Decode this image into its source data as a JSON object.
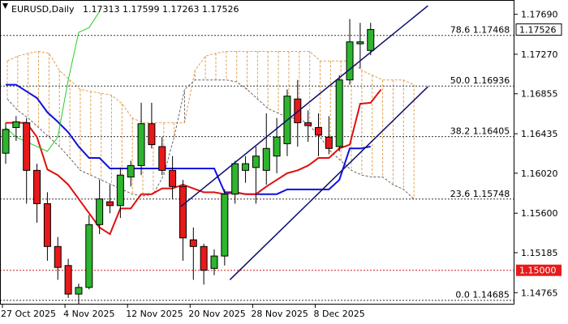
{
  "chart_data": {
    "type": "candlestick",
    "title": "EURUSD,Daily",
    "ohlc_header": "1.17313 1.17599 1.17263 1.17526",
    "ylim": [
      1.1464,
      1.1784
    ],
    "y_ticks": [
      "1.17690",
      "1.17270",
      "1.16855",
      "1.16435",
      "1.16020",
      "1.15600",
      "1.15185",
      "1.14765"
    ],
    "x_tick_labels": [
      "27 Oct 2025",
      "4 Nov 2025",
      "12 Nov 2025",
      "20 Nov 2025",
      "28 Nov 2025",
      "8 Dec 2025"
    ],
    "current_price_label": "1.17526",
    "level_label": "1.15000",
    "fib_levels": [
      {
        "label": "78.6 1.17468",
        "value": 1.17468
      },
      {
        "label": "50.0 1.16936",
        "value": 1.16936
      },
      {
        "label": "38.2 1.16405",
        "value": 1.16405
      },
      {
        "label": "23.6 1.15748",
        "value": 1.15748
      },
      {
        "label": "0.0 1.14685",
        "value": 1.14685
      }
    ],
    "horizontal_level": 1.15,
    "candles": [
      {
        "o": 1.1623,
        "h": 1.1655,
        "l": 1.1612,
        "c": 1.1648
      },
      {
        "o": 1.165,
        "h": 1.1662,
        "l": 1.1636,
        "c": 1.1656
      },
      {
        "o": 1.1655,
        "h": 1.166,
        "l": 1.157,
        "c": 1.1605
      },
      {
        "o": 1.1605,
        "h": 1.1612,
        "l": 1.155,
        "c": 1.157
      },
      {
        "o": 1.157,
        "h": 1.1582,
        "l": 1.151,
        "c": 1.1525
      },
      {
        "o": 1.1525,
        "h": 1.1535,
        "l": 1.149,
        "c": 1.1503
      },
      {
        "o": 1.1505,
        "h": 1.1512,
        "l": 1.1471,
        "c": 1.1475
      },
      {
        "o": 1.1475,
        "h": 1.1486,
        "l": 1.1464,
        "c": 1.1482
      },
      {
        "o": 1.1482,
        "h": 1.1558,
        "l": 1.148,
        "c": 1.1548
      },
      {
        "o": 1.1548,
        "h": 1.1595,
        "l": 1.1538,
        "c": 1.1575
      },
      {
        "o": 1.1572,
        "h": 1.159,
        "l": 1.156,
        "c": 1.1568
      },
      {
        "o": 1.1568,
        "h": 1.1608,
        "l": 1.1555,
        "c": 1.16
      },
      {
        "o": 1.1598,
        "h": 1.1615,
        "l": 1.1588,
        "c": 1.161
      },
      {
        "o": 1.161,
        "h": 1.1676,
        "l": 1.16,
        "c": 1.1654
      },
      {
        "o": 1.1654,
        "h": 1.1676,
        "l": 1.1628,
        "c": 1.1632
      },
      {
        "o": 1.163,
        "h": 1.164,
        "l": 1.16,
        "c": 1.1605
      },
      {
        "o": 1.1605,
        "h": 1.162,
        "l": 1.1575,
        "c": 1.1588
      },
      {
        "o": 1.1588,
        "h": 1.1595,
        "l": 1.151,
        "c": 1.1534
      },
      {
        "o": 1.1532,
        "h": 1.1545,
        "l": 1.149,
        "c": 1.1525
      },
      {
        "o": 1.1525,
        "h": 1.1528,
        "l": 1.1485,
        "c": 1.15
      },
      {
        "o": 1.1502,
        "h": 1.1522,
        "l": 1.1495,
        "c": 1.1515
      },
      {
        "o": 1.1515,
        "h": 1.1585,
        "l": 1.1505,
        "c": 1.158
      },
      {
        "o": 1.158,
        "h": 1.1615,
        "l": 1.157,
        "c": 1.1612
      },
      {
        "o": 1.1605,
        "h": 1.162,
        "l": 1.1592,
        "c": 1.1612
      },
      {
        "o": 1.1608,
        "h": 1.163,
        "l": 1.157,
        "c": 1.162
      },
      {
        "o": 1.1605,
        "h": 1.1665,
        "l": 1.159,
        "c": 1.1628
      },
      {
        "o": 1.162,
        "h": 1.166,
        "l": 1.1602,
        "c": 1.164
      },
      {
        "o": 1.1633,
        "h": 1.169,
        "l": 1.162,
        "c": 1.1683
      },
      {
        "o": 1.168,
        "h": 1.17,
        "l": 1.163,
        "c": 1.1655
      },
      {
        "o": 1.1655,
        "h": 1.1668,
        "l": 1.1635,
        "c": 1.1652
      },
      {
        "o": 1.165,
        "h": 1.1665,
        "l": 1.162,
        "c": 1.1642
      },
      {
        "o": 1.164,
        "h": 1.1662,
        "l": 1.1622,
        "c": 1.1628
      },
      {
        "o": 1.163,
        "h": 1.1705,
        "l": 1.1625,
        "c": 1.17
      },
      {
        "o": 1.17,
        "h": 1.1764,
        "l": 1.1695,
        "c": 1.174
      },
      {
        "o": 1.1738,
        "h": 1.176,
        "l": 1.1712,
        "c": 1.174
      },
      {
        "o": 1.1731,
        "h": 1.176,
        "l": 1.1726,
        "c": 1.1753
      }
    ],
    "kijun_line": [
      1.1695,
      1.1695,
      1.1688,
      1.1681,
      1.1666,
      1.1656,
      1.1645,
      1.163,
      1.1618,
      1.1618,
      1.1607,
      1.1607,
      1.1607,
      1.1607,
      1.1607,
      1.1607,
      1.1607,
      1.1607,
      1.1607,
      1.1607,
      1.1607,
      1.1582,
      1.1582,
      1.158,
      1.158,
      1.158,
      1.158,
      1.1585,
      1.1585,
      1.1585,
      1.1585,
      1.1585,
      1.1595,
      1.1628,
      1.1628,
      1.163
    ],
    "tenkan_line": [
      1.1655,
      1.1655,
      1.1655,
      1.164,
      1.1606,
      1.16,
      1.159,
      1.1575,
      1.156,
      1.1545,
      1.1538,
      1.1565,
      1.1565,
      1.158,
      1.158,
      1.1586,
      1.1586,
      1.159,
      1.1586,
      1.1582,
      1.1582,
      1.158,
      1.1582,
      1.158,
      1.158,
      1.1588,
      1.1595,
      1.1602,
      1.1605,
      1.161,
      1.1618,
      1.1618,
      1.1628,
      1.1632,
      1.1675,
      1.1676,
      1.169
    ],
    "chikou_line": [
      1.165,
      1.164,
      1.1635,
      1.163,
      1.1625,
      1.164,
      1.17,
      1.175,
      1.1755,
      1.1772
    ],
    "cloud_upper": [
      1.172,
      1.1725,
      1.1728,
      1.173,
      1.1728,
      1.171,
      1.17,
      1.169,
      1.1688,
      1.1686,
      1.1684,
      1.1675,
      1.166,
      1.1655,
      1.1655,
      1.1655,
      1.1655,
      1.1655,
      1.171,
      1.1725,
      1.1728,
      1.173,
      1.173,
      1.173,
      1.173,
      1.173,
      1.173,
      1.173,
      1.173,
      1.173,
      1.172,
      1.172,
      1.172,
      1.172,
      1.171,
      1.1705,
      1.17,
      1.17,
      1.17,
      1.1695
    ],
    "cloud_lower": [
      1.168,
      1.1668,
      1.166,
      1.165,
      1.164,
      1.163,
      1.1618,
      1.1605,
      1.16,
      1.1595,
      1.159,
      1.1585,
      1.158,
      1.1578,
      1.158,
      1.16,
      1.164,
      1.169,
      1.17,
      1.17,
      1.17,
      1.17,
      1.1698,
      1.169,
      1.168,
      1.167,
      1.1665,
      1.166,
      1.166,
      1.1652,
      1.164,
      1.1625,
      1.1615,
      1.1605,
      1.16,
      1.1598,
      1.1598,
      1.159,
      1.1585,
      1.1575
    ],
    "channel_lines": [
      {
        "from": {
          "bar": 16.8,
          "price": 1.1567
        },
        "to": {
          "bar": 40.5,
          "price": 1.1778
        }
      },
      {
        "from": {
          "bar": 21.5,
          "price": 1.149
        },
        "to": {
          "bar": 40.5,
          "price": 1.1693
        }
      }
    ],
    "colors": {
      "bull": "#2db52d",
      "bear": "#e8191a",
      "candle_outline": "#000000",
      "kijun": "#1010e0",
      "tenkan": "#e01010",
      "chikou": "#22cc22",
      "cloud_orange": "#e0a050",
      "cloud_gray": "#666666",
      "channel": "#0d0d6b",
      "fib": "#333333",
      "level": "#cc2222",
      "grid": "#c8c8c8"
    }
  }
}
